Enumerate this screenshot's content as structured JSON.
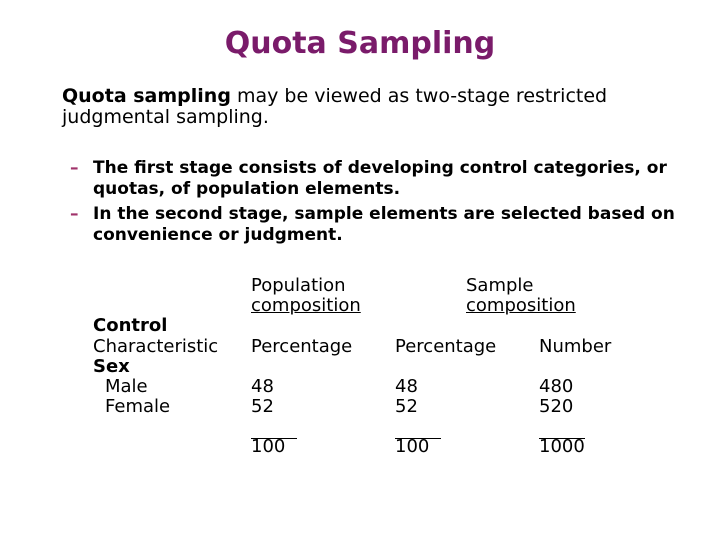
{
  "title": "Quota Sampling",
  "intro": {
    "bold_term": "Quota sampling",
    "rest": " may be viewed as two-stage restricted judgmental sampling."
  },
  "bullets": [
    {
      "marker": "–",
      "text": "The first stage consists of developing control categories, or quotas, of population elements."
    },
    {
      "marker": "–",
      "text": "In the second stage, sample elements are selected based on convenience or judgment."
    }
  ],
  "table": {
    "header_population_1": "Population",
    "header_population_2": "composition",
    "header_sample_1": "Sample",
    "header_sample_2": "composition",
    "label_control": "Control",
    "label_characteristic": "Characteristic",
    "col_pop_percentage": "Percentage",
    "col_sample_percentage": "Percentage",
    "col_sample_number": "Number",
    "group_label": "Sex",
    "rows": [
      {
        "label": "Male",
        "pop_pct": "48",
        "sample_pct": "48",
        "sample_num": "480"
      },
      {
        "label": "Female",
        "pop_pct": "52",
        "sample_pct": "52",
        "sample_num": "520"
      }
    ],
    "totals": {
      "pop_pct": "100",
      "sample_pct": "100",
      "sample_num": "1000"
    }
  },
  "colors": {
    "title": "#7a1b6a",
    "dash": "#a0326a"
  }
}
